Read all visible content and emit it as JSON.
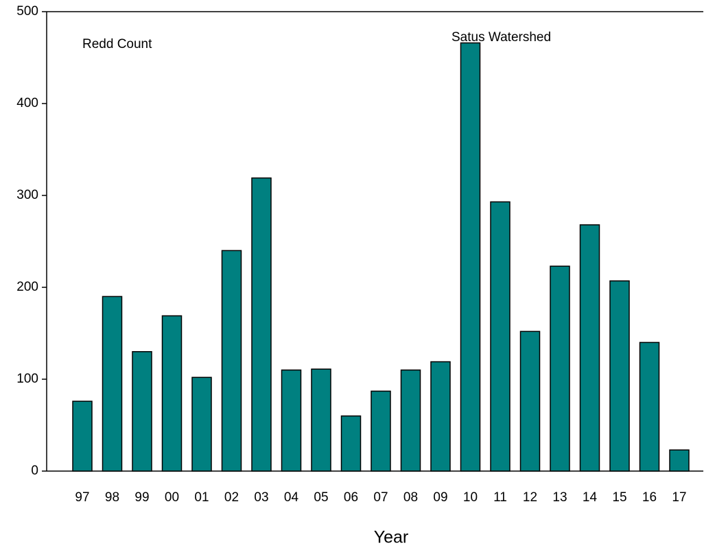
{
  "chart_data": {
    "type": "bar",
    "annotations": [
      "Redd Count",
      "Satus Watershed"
    ],
    "x_label": "Year",
    "categories": [
      "97",
      "98",
      "99",
      "00",
      "01",
      "02",
      "03",
      "04",
      "05",
      "06",
      "07",
      "08",
      "09",
      "10",
      "11",
      "12",
      "13",
      "14",
      "15",
      "16",
      "17"
    ],
    "values": [
      76,
      190,
      130,
      169,
      102,
      240,
      319,
      110,
      111,
      60,
      87,
      110,
      119,
      466,
      293,
      152,
      223,
      268,
      207,
      140,
      23
    ],
    "color": "#008080",
    "ylim": [
      0,
      500
    ],
    "yticks": [
      0,
      100,
      200,
      300,
      400,
      500
    ],
    "grid": false
  }
}
